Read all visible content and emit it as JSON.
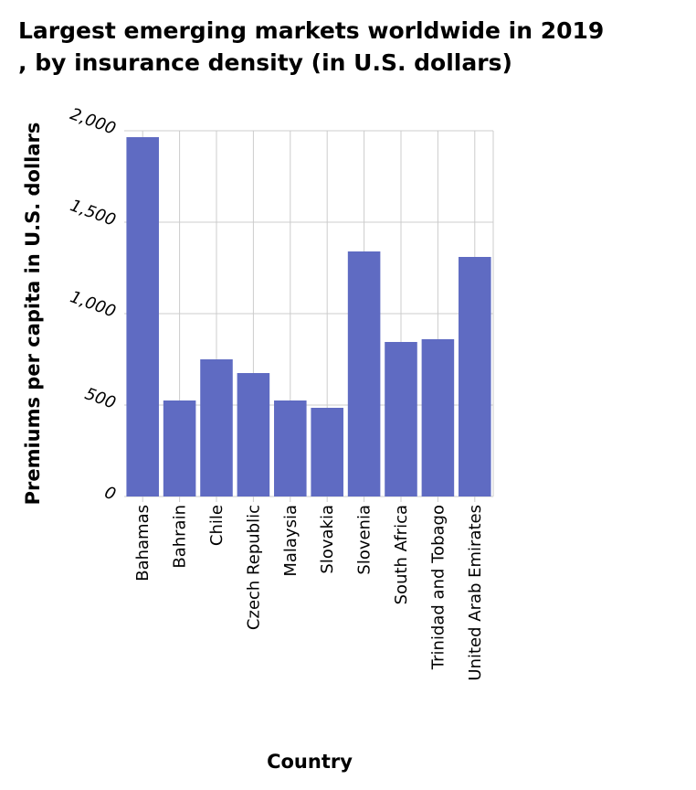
{
  "chart_data": {
    "type": "bar",
    "title": "Largest emerging markets worldwide in 2019\n, by insurance density (in U.S. dollars)",
    "xlabel": "Country",
    "ylabel": "Premiums per capita in U.S. dollars",
    "categories": [
      "Bahamas",
      "Bahrain",
      "Chile",
      "Czech Republic",
      "Malaysia",
      "Slovakia",
      "Slovenia",
      "South Africa",
      "Trinidad and Tobago",
      "United Arab Emirates"
    ],
    "values": [
      1965,
      525,
      750,
      675,
      525,
      485,
      1340,
      845,
      860,
      1310
    ],
    "ylim": [
      0,
      2000
    ],
    "yticks": [
      0,
      500,
      1000,
      1500,
      2000
    ],
    "ytick_labels": [
      "0",
      "500",
      "1,000",
      "1,500",
      "2,000"
    ],
    "grid": true,
    "bar_color": "#5f6bc2",
    "grid_color": "#cccccc"
  }
}
